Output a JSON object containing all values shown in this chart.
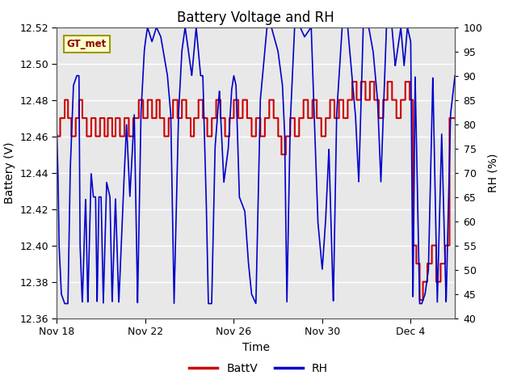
{
  "title": "Battery Voltage and RH",
  "xlabel": "Time",
  "ylabel_left": "Battery (V)",
  "ylabel_right": "RH (%)",
  "ylim_left": [
    12.36,
    12.52
  ],
  "ylim_right": [
    40,
    100
  ],
  "yticks_left": [
    12.36,
    12.38,
    12.4,
    12.42,
    12.44,
    12.46,
    12.48,
    12.5,
    12.52
  ],
  "yticks_right": [
    40,
    45,
    50,
    55,
    60,
    65,
    70,
    75,
    80,
    85,
    90,
    95,
    100
  ],
  "bg_color": "#e8e8e8",
  "label_box_text": "GT_met",
  "legend_entries": [
    "BattV",
    "RH"
  ],
  "batt_color": "#cc0000",
  "rh_color": "#0000cc",
  "title_fontsize": 12,
  "axis_label_fontsize": 10,
  "tick_fontsize": 9,
  "legend_fontsize": 10,
  "xtick_positions": [
    0,
    4,
    8,
    12,
    16
  ],
  "xtick_labels": [
    "Nov 18",
    "Nov 22",
    "Nov 26",
    "Nov 30",
    "Dec 4"
  ],
  "figsize": [
    6.4,
    4.8
  ],
  "dpi": 100
}
